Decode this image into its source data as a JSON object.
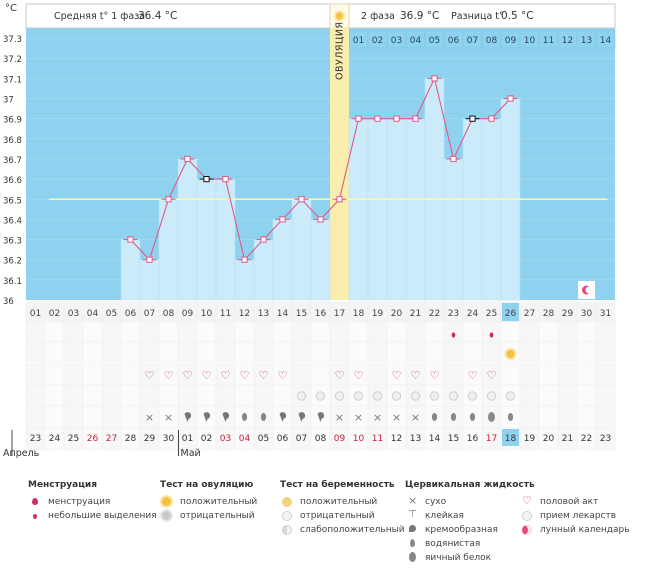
{
  "chart_data": {
    "type": "line",
    "y_unit_label": "°C",
    "ylim": [
      36.0,
      37.35
    ],
    "y_ticks": [
      "37.3",
      "37.2",
      "37.1",
      "37",
      "36.9",
      "36.8",
      "36.7",
      "36.6",
      "36.5",
      "36.4",
      "36.3",
      "36.2",
      "36.1",
      "36"
    ],
    "y_tick_values": [
      37.3,
      37.2,
      37.1,
      37.0,
      36.9,
      36.8,
      36.7,
      36.6,
      36.5,
      36.4,
      36.3,
      36.2,
      36.1,
      36.0
    ],
    "cover_line": 36.5,
    "ovulation_day": 17,
    "ovulation_label": "ОВУЛЯЦИЯ",
    "days": [
      1,
      2,
      3,
      4,
      5,
      6,
      7,
      8,
      9,
      10,
      11,
      12,
      13,
      14,
      15,
      16,
      17,
      18,
      19,
      20,
      21,
      22,
      23,
      24,
      25,
      26,
      27,
      28,
      29,
      30,
      31
    ],
    "temperatures": [
      null,
      null,
      null,
      null,
      null,
      36.3,
      36.2,
      36.5,
      36.7,
      36.6,
      36.6,
      36.2,
      36.3,
      36.4,
      36.5,
      36.4,
      36.5,
      36.9,
      36.9,
      36.9,
      36.9,
      37.1,
      36.7,
      36.9,
      36.9,
      37.0,
      null,
      null,
      null,
      null,
      null
    ],
    "black_points": [
      10,
      24
    ],
    "day_labels": [
      "01",
      "02",
      "03",
      "04",
      "05",
      "06",
      "07",
      "08",
      "09",
      "10",
      "11",
      "12",
      "13",
      "14",
      "15",
      "16",
      "17",
      "18",
      "19",
      "20",
      "21",
      "22",
      "23",
      "24",
      "25",
      "26",
      "27",
      "28",
      "29",
      "30",
      "31"
    ],
    "current_day": 26,
    "phase2_day_labels": [
      "01",
      "02",
      "03",
      "04",
      "05",
      "06",
      "07",
      "08",
      "09",
      "10",
      "11",
      "12",
      "13",
      "14"
    ],
    "phase1_label": "Средняя t° 1 фаза",
    "phase1_value": "36.4 °C",
    "phase2_label": "2 фаза",
    "phase2_value": "36.9 °C",
    "diff_label": "Разница t°",
    "diff_value": "0.5 °C",
    "moon_day": 30,
    "date_labels": [
      "23",
      "24",
      "25",
      "26",
      "27",
      "28",
      "29",
      "30",
      "01",
      "02",
      "03",
      "04",
      "05",
      "06",
      "07",
      "08",
      "09",
      "10",
      "11",
      "12",
      "13",
      "14",
      "15",
      "16",
      "17",
      "18",
      "19",
      "20",
      "21",
      "22",
      "23"
    ],
    "date_red": [
      false,
      false,
      false,
      true,
      true,
      false,
      false,
      false,
      false,
      false,
      true,
      true,
      false,
      false,
      false,
      false,
      true,
      true,
      true,
      false,
      false,
      false,
      false,
      false,
      true,
      false,
      false,
      false,
      false,
      false,
      false
    ],
    "today_index": 26,
    "month_labels": [
      {
        "text": "Апрель",
        "day": 0
      },
      {
        "text": "Май",
        "day": 9
      }
    ],
    "row_drop": [
      23,
      25
    ],
    "row_sun": [
      26
    ],
    "row_heart": [
      7,
      8,
      9,
      10,
      11,
      12,
      13,
      14,
      17,
      18,
      20,
      21,
      22,
      24,
      25
    ],
    "row_preg": [
      15,
      16,
      17,
      18,
      19,
      20,
      21,
      22,
      23,
      24,
      25,
      26
    ],
    "fluid_row": [
      null,
      null,
      null,
      null,
      null,
      null,
      "x",
      "x",
      "comma",
      "comma",
      "comma",
      "wdrop",
      "wdrop",
      "comma",
      "comma",
      "comma",
      "x",
      "x",
      "x",
      "x",
      "x",
      "wdrop",
      "wdrop",
      "wdrop",
      "egg",
      "wdrop",
      null,
      null,
      null,
      null,
      null
    ]
  },
  "legend": {
    "col1_title": "Менструация",
    "col1_items": [
      "менструация",
      "небольшие выделения"
    ],
    "col2_title": "Тест на овуляцию",
    "col2_items": [
      "положительный",
      "отрицательный"
    ],
    "col3_title": "Тест на беременность",
    "col3_items": [
      "положительный",
      "отрицательный",
      "слабоположительный"
    ],
    "col4_title": "Цервикальная жидкость",
    "col4_items": [
      "сухо",
      "клейкая",
      "кремообразная",
      "водянистая",
      "яичный белок"
    ],
    "col5_items": [
      "половой акт",
      "прием лекарств",
      "лунный календарь"
    ]
  },
  "colors": {
    "sky": "#8ed2ef",
    "bar": "#cbebfb",
    "ovulation": "#f9eeae",
    "line": "#e05a87",
    "current": "#8ed2ef"
  }
}
